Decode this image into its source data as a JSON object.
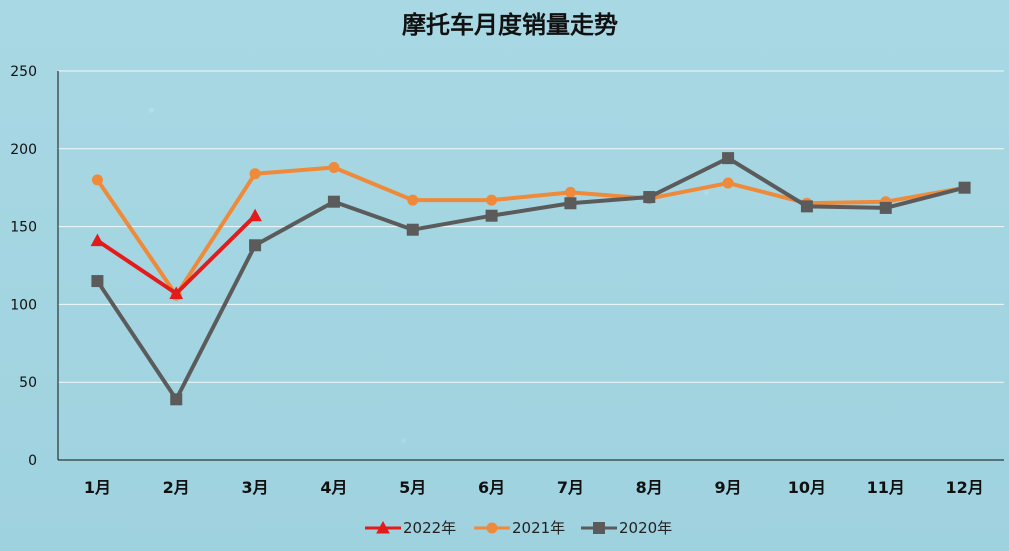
{
  "chart_data": {
    "type": "line",
    "title": "摩托车月度销量走势",
    "xlabel": "",
    "ylabel": "",
    "categories": [
      "1月",
      "2月",
      "3月",
      "4月",
      "5月",
      "6月",
      "7月",
      "8月",
      "9月",
      "10月",
      "11月",
      "12月"
    ],
    "y_ticks": [
      "0",
      "50",
      "100",
      "150",
      "200",
      "250"
    ],
    "ylim": [
      0,
      250
    ],
    "grid": true,
    "legend_position": "bottom",
    "series": [
      {
        "name": "2022年",
        "values": [
          141,
          107,
          157,
          null,
          null,
          null,
          null,
          null,
          null,
          null,
          null,
          null
        ],
        "color": "#e31b1b",
        "marker": "triangle"
      },
      {
        "name": "2021年",
        "values": [
          180,
          106,
          184,
          188,
          167,
          167,
          172,
          168,
          178,
          165,
          166,
          175
        ],
        "color": "#ef8a3a",
        "marker": "circle"
      },
      {
        "name": "2020年",
        "values": [
          115,
          39,
          138,
          166,
          148,
          157,
          165,
          169,
          194,
          163,
          162,
          175
        ],
        "color": "#5b5b5b",
        "marker": "square"
      }
    ]
  }
}
